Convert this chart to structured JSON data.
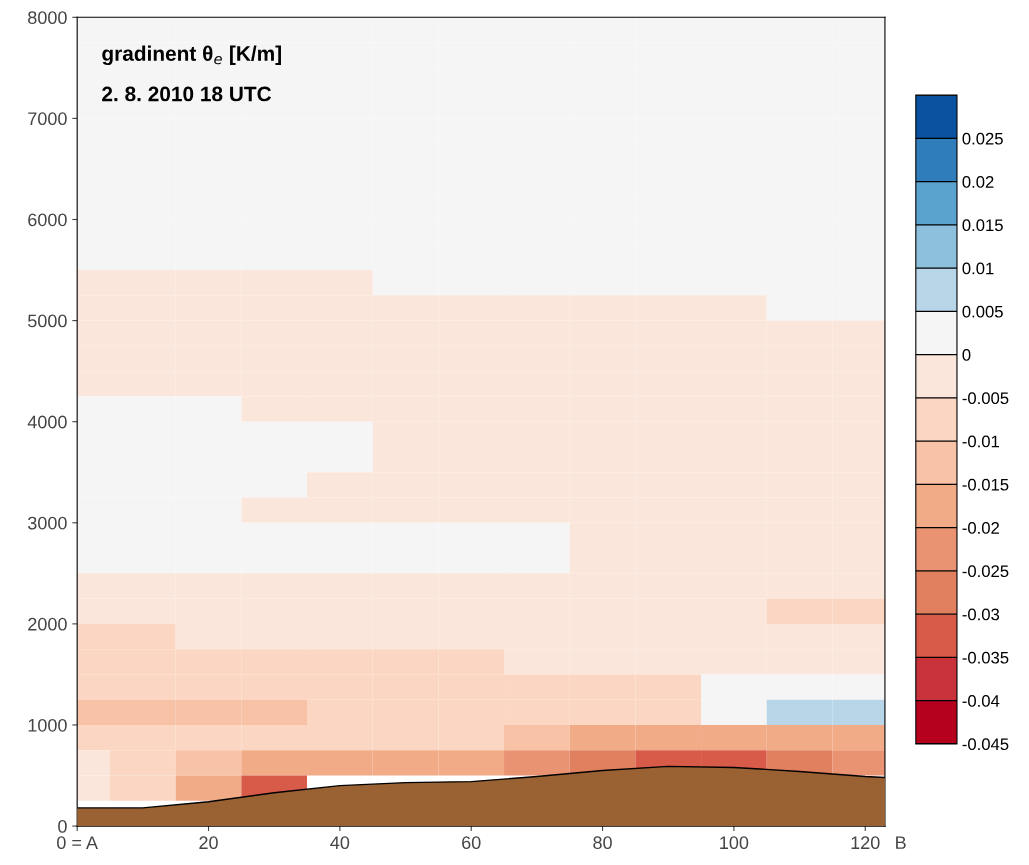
{
  "chart_data": {
    "type": "heatmap",
    "title": "gradinent θ$_{e}$ [K/m]",
    "subtitle": "2. 8. 2010 18 UTC",
    "annotations": [
      "B"
    ],
    "x": [
      0,
      10,
      20,
      30,
      40,
      50,
      60,
      70,
      80,
      90,
      100,
      110,
      120
    ],
    "y": [
      7875,
      7625,
      7375,
      7125,
      6875,
      6625,
      6375,
      6125,
      5875,
      5625,
      5375,
      5125,
      4875,
      4625,
      4375,
      4125,
      3875,
      3625,
      3375,
      3125,
      2875,
      2625,
      2375,
      2125,
      1875,
      1625,
      1375,
      1125,
      875,
      625,
      375
    ],
    "cells": [
      [
        0.0025,
        0.0025,
        0.0025,
        0.0025,
        0.0025,
        0.0025,
        0.0025,
        0.0025,
        0.0025,
        0.0025,
        0.0025,
        0.0025,
        0.0025
      ],
      [
        0.0025,
        0.0025,
        0.0025,
        0.0025,
        0.0025,
        0.0025,
        0.0025,
        0.0025,
        0.0025,
        0.0025,
        0.0025,
        0.0025,
        0.0025
      ],
      [
        0.0025,
        0.0025,
        0.0025,
        0.0025,
        0.0025,
        0.0025,
        0.0025,
        0.0025,
        0.0025,
        0.0025,
        0.0025,
        0.0025,
        0.0025
      ],
      [
        0.0025,
        0.0025,
        0.0025,
        0.0025,
        0.0025,
        0.0025,
        0.0025,
        0.0025,
        0.0025,
        0.0025,
        0.0025,
        0.0025,
        0.0025
      ],
      [
        0.0025,
        0.0025,
        0.0025,
        0.0025,
        0.0025,
        0.0025,
        0.0025,
        0.0025,
        0.0025,
        0.0025,
        0.0025,
        0.0025,
        0.0025
      ],
      [
        0.0025,
        0.0025,
        0.0025,
        0.0025,
        0.0025,
        0.0025,
        0.0025,
        0.0025,
        0.0025,
        0.0025,
        0.0025,
        0.0025,
        0.0025
      ],
      [
        0.0025,
        0.0025,
        0.0025,
        0.0025,
        0.0025,
        0.0025,
        0.0025,
        0.0025,
        0.0025,
        0.0025,
        0.0025,
        0.0025,
        0.0025
      ],
      [
        0.0025,
        0.0025,
        0.0025,
        0.0025,
        0.0025,
        0.0025,
        0.0025,
        0.0025,
        0.0025,
        0.0025,
        0.0025,
        0.0025,
        0.0025
      ],
      [
        0.0025,
        0.0025,
        0.0025,
        0.0025,
        0.0025,
        0.0025,
        0.0025,
        0.0025,
        0.0025,
        0.0025,
        0.0025,
        0.0025,
        0.0025
      ],
      [
        0.0025,
        0.0025,
        0.0025,
        0.0025,
        0.0025,
        0.0025,
        0.0025,
        0.0025,
        0.0025,
        0.0025,
        0.0025,
        0.0025,
        0.0025
      ],
      [
        -0.0025,
        -0.0025,
        -0.0025,
        -0.0025,
        -0.0025,
        0.0025,
        0.0025,
        0.0025,
        0.0025,
        0.0025,
        0.0025,
        0.0025,
        0.0025
      ],
      [
        -0.0025,
        -0.0025,
        -0.0025,
        -0.0025,
        -0.0025,
        -0.0025,
        -0.0025,
        -0.0025,
        -0.0025,
        -0.0025,
        -0.0025,
        0.0025,
        0.0025
      ],
      [
        -0.0025,
        -0.0025,
        -0.0025,
        -0.0025,
        -0.0025,
        -0.0025,
        -0.0025,
        -0.0025,
        -0.0025,
        -0.0025,
        -0.0025,
        -0.0025,
        -0.0025
      ],
      [
        -0.0025,
        -0.0025,
        -0.0025,
        -0.0025,
        -0.0025,
        -0.0025,
        -0.0025,
        -0.0025,
        -0.0025,
        -0.0025,
        -0.0025,
        -0.0025,
        -0.0025
      ],
      [
        -0.0025,
        -0.0025,
        -0.0025,
        -0.0025,
        -0.0025,
        -0.0025,
        -0.0025,
        -0.0025,
        -0.0025,
        -0.0025,
        -0.0025,
        -0.0025,
        -0.0025
      ],
      [
        0.0025,
        0.0025,
        0.0025,
        -0.0025,
        -0.0025,
        -0.0025,
        -0.0025,
        -0.0025,
        -0.0025,
        -0.0025,
        -0.0025,
        -0.0025,
        -0.0025
      ],
      [
        0.0025,
        0.0025,
        0.0025,
        0.0025,
        0.0025,
        -0.0025,
        -0.0025,
        -0.0025,
        -0.0025,
        -0.0025,
        -0.0025,
        -0.0025,
        -0.0025
      ],
      [
        0.0025,
        0.0025,
        0.0025,
        0.0025,
        0.0025,
        -0.0025,
        -0.0025,
        -0.0025,
        -0.0025,
        -0.0025,
        -0.0025,
        -0.0025,
        -0.0025
      ],
      [
        0.0025,
        0.0025,
        0.0025,
        0.0025,
        -0.0025,
        -0.0025,
        -0.0025,
        -0.0025,
        -0.0025,
        -0.0025,
        -0.0025,
        -0.0025,
        -0.0025
      ],
      [
        0.0025,
        0.0025,
        0.0025,
        -0.0025,
        -0.0025,
        -0.0025,
        -0.0025,
        -0.0025,
        -0.0025,
        -0.0025,
        -0.0025,
        -0.0025,
        -0.0025
      ],
      [
        0.0025,
        0.0025,
        0.0025,
        0.0025,
        0.0025,
        0.0025,
        0.0025,
        0.0025,
        -0.0025,
        -0.0025,
        -0.0025,
        -0.0025,
        -0.0025
      ],
      [
        0.0025,
        0.0025,
        0.0025,
        0.0025,
        0.0025,
        0.0025,
        0.0025,
        0.0025,
        -0.0025,
        -0.0025,
        -0.0025,
        -0.0025,
        -0.0025
      ],
      [
        -0.0025,
        -0.0025,
        -0.0025,
        -0.0025,
        -0.0025,
        -0.0025,
        -0.0025,
        -0.0025,
        -0.0025,
        -0.0025,
        -0.0025,
        -0.0025,
        -0.0025
      ],
      [
        -0.0025,
        -0.0025,
        -0.0025,
        -0.0025,
        -0.0025,
        -0.0025,
        -0.0025,
        -0.0025,
        -0.0025,
        -0.0025,
        -0.0025,
        -0.0075,
        -0.0075
      ],
      [
        -0.0075,
        -0.0075,
        -0.0025,
        -0.0025,
        -0.0025,
        -0.0025,
        -0.0025,
        -0.0025,
        -0.0025,
        -0.0025,
        -0.0025,
        -0.0025,
        -0.0025
      ],
      [
        -0.0075,
        -0.0075,
        -0.0075,
        -0.0075,
        -0.0075,
        -0.0075,
        -0.0075,
        -0.0025,
        -0.0025,
        -0.0025,
        -0.0025,
        -0.0025,
        -0.0025
      ],
      [
        -0.0075,
        -0.0075,
        -0.0075,
        -0.0075,
        -0.0075,
        -0.0075,
        -0.0075,
        -0.0075,
        -0.0075,
        -0.0075,
        0.0025,
        0.0025,
        0.0025
      ],
      [
        -0.0125,
        -0.0125,
        -0.0125,
        -0.0125,
        -0.0075,
        -0.0075,
        -0.0075,
        -0.0075,
        -0.0075,
        -0.0075,
        0.0025,
        0.0075,
        0.0075
      ],
      [
        -0.0075,
        -0.0075,
        -0.0075,
        -0.0075,
        -0.0075,
        -0.0075,
        -0.0075,
        -0.0125,
        -0.0175,
        -0.0175,
        -0.0175,
        -0.0175,
        -0.0175
      ],
      [
        -0.0025,
        -0.0075,
        -0.0125,
        -0.0175,
        -0.0175,
        -0.0175,
        -0.0175,
        -0.0225,
        -0.0275,
        -0.0325,
        -0.0325,
        -0.0275,
        -0.0225
      ],
      [
        -0.0025,
        -0.0075,
        -0.0175,
        -0.0325,
        null,
        null,
        null,
        null,
        null,
        null,
        null,
        null,
        null
      ]
    ],
    "colors": [
      "#b5001e",
      "#c8323a",
      "#d85a48",
      "#e0805f",
      "#ea9373",
      "#f2ab87",
      "#f7c2a5",
      "#fbd6c2",
      "#fbe6dc",
      "#f5f5f5",
      "#b8d6e8",
      "#8cc0dc",
      "#5ba3cf",
      "#2f7dbb",
      "#0a52a0"
    ],
    "clim": [
      -0.045,
      0.03
    ],
    "cticks": [
      -0.045,
      -0.04,
      -0.035,
      -0.03,
      -0.025,
      -0.02,
      -0.015,
      -0.01,
      -0.005,
      0,
      0.005,
      0.01,
      0.015,
      0.02,
      0.025,
      {
        "value": 0.03,
        "label": null
      }
    ],
    "series": [
      {
        "type": "area",
        "color": "#9a6132",
        "x": [
          0,
          10,
          20,
          30,
          40,
          50,
          60,
          70,
          80,
          90,
          100,
          110,
          120,
          123
        ],
        "values": [
          180,
          180,
          240,
          330,
          400,
          430,
          440,
          490,
          550,
          590,
          580,
          540,
          490,
          480
        ]
      }
    ],
    "xlim": [
      0,
      123
    ],
    "xticks": [
      {
        "value": 0,
        "label": "0 = A"
      },
      20,
      40,
      60,
      80,
      100,
      120
    ],
    "ylim": [
      0,
      8000
    ],
    "yticks": [
      0,
      1000,
      2000,
      3000,
      4000,
      5000,
      6000,
      7000,
      8000
    ],
    "grid": false
  }
}
